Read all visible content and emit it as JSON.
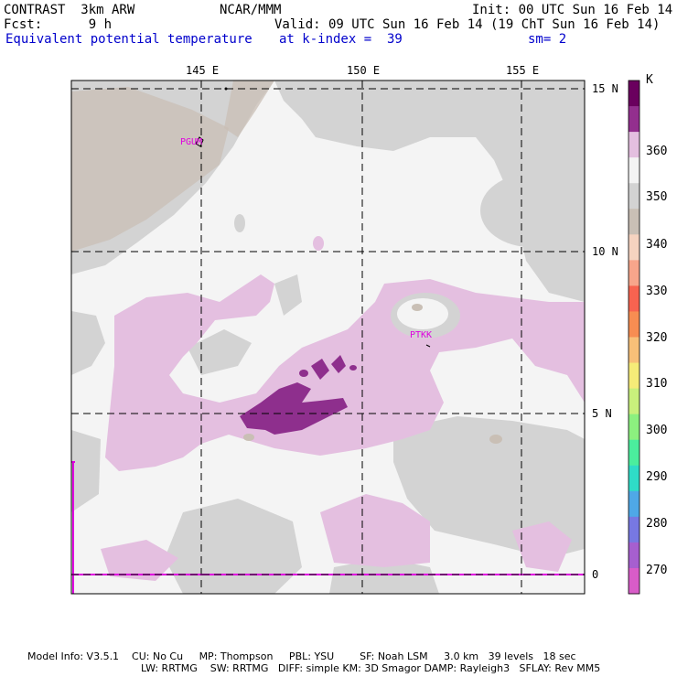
{
  "header": {
    "left1": "CONTRAST  3km ARW",
    "left2": "Fcst:      9 h",
    "center": "NCAR/MMM",
    "init": "Init: 00 UTC Sun 16 Feb 14",
    "valid": "Valid: 09 UTC Sun 16 Feb 14 (19 ChT Sun 16 Feb 14)",
    "field": "Equivalent potential temperature",
    "level": "at k-index =  39",
    "smooth": "sm= 2"
  },
  "axes": {
    "lon_labels": [
      "145 E",
      "150 E",
      "155 E"
    ],
    "lat_labels": [
      "15 N",
      "10 N",
      "5 N",
      "0"
    ]
  },
  "stations": [
    "PGUM",
    "PTKK"
  ],
  "colorbar": {
    "unit": "K",
    "labels": [
      "360",
      "350",
      "340",
      "330",
      "320",
      "310",
      "300",
      "290",
      "280",
      "270"
    ],
    "colors": [
      "#6a005e",
      "#932f8e",
      "#e4bfe0",
      "#f4f4f4",
      "#d3d3d3",
      "#c9bfb5",
      "#f6d3c0",
      "#f7a58b",
      "#f76350",
      "#f78d52",
      "#f8c078",
      "#f6ec78",
      "#c9f07c",
      "#8cf07f",
      "#4bee9d",
      "#2fdcc7",
      "#4fa8e7",
      "#7778e2",
      "#a65fcf",
      "#d85cc8"
    ],
    "levels": [
      370,
      365,
      360,
      355,
      350,
      345,
      340,
      335,
      330,
      325,
      320,
      315,
      310,
      305,
      300,
      295,
      290,
      285,
      280,
      275
    ]
  },
  "footer": {
    "line1": "Model Info: V3.5.1    CU: No Cu     MP: Thompson     PBL: YSU        SF: Noah LSM     3.0 km   39 levels   18 sec",
    "line2": "LW: RRTMG    SW: RRTMG   DIFF: simple KM: 3D Smagor DAMP: Rayleigh3   SFLAY: Rev MM5"
  },
  "colors": {
    "purple_dark": "#8e2f8d",
    "purple_light": "#e4bfe0",
    "gray": "#d3d3d3",
    "white_field": "#f4f4f4",
    "tan": "#c9bfb5",
    "station_label": "#e000e0"
  }
}
